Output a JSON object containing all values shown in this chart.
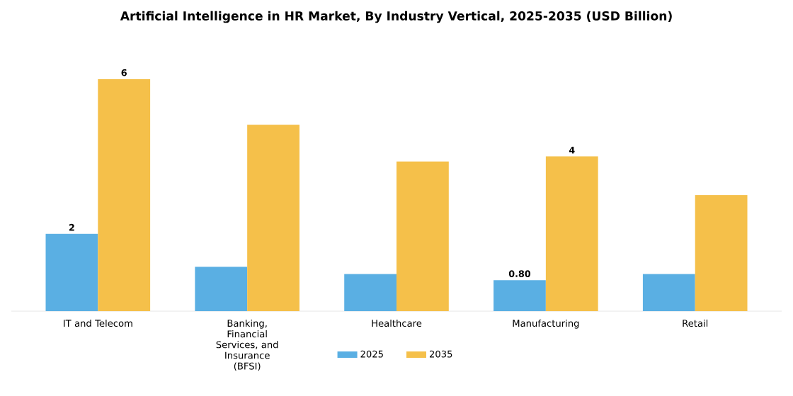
{
  "chart_data": {
    "type": "bar",
    "title": "Artificial Intelligence in HR Market, By Industry Vertical, 2025-2035 (USD Billion)",
    "categories": [
      "IT and Telecom",
      "Banking, Financial Services, and Insurance (BFSI)",
      "Healthcare",
      "Manufacturing",
      "Retail"
    ],
    "series": [
      {
        "name": "2025",
        "color": "#5aafe3",
        "values": [
          2,
          1.15,
          0.96,
          0.8,
          0.96
        ],
        "value_labels": [
          "2",
          null,
          null,
          "0.80",
          null
        ]
      },
      {
        "name": "2035",
        "color": "#f5c04a",
        "values": [
          6,
          4.82,
          3.87,
          4,
          3.0
        ],
        "value_labels": [
          "6",
          null,
          null,
          "4",
          null
        ]
      }
    ],
    "tick_labels": "x",
    "legend": "bottom"
  }
}
